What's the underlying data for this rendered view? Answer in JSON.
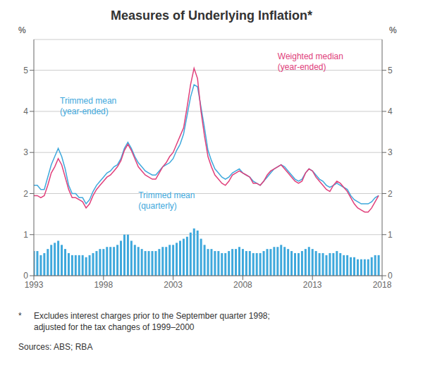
{
  "chart_data": {
    "type": "bar",
    "title": "Measures of Underlying Inflation*",
    "ylabel": "%",
    "y2label": "%",
    "footnote_mark": "*",
    "footnote": "Excludes interest charges prior to the September quarter 1998;\nadjusted for the tax changes of 1999–2000",
    "sources": "Sources: ABS; RBA",
    "grid": true,
    "xlim": [
      1993,
      2018
    ],
    "xticks": [
      1993,
      1998,
      2003,
      2008,
      2013,
      2018
    ],
    "ylim": [
      0,
      5.75
    ],
    "yticks": [
      0,
      1,
      2,
      3,
      4,
      5
    ],
    "y2lim": [
      0,
      5.75
    ],
    "y2ticks": [
      0,
      1,
      2,
      3,
      4,
      5
    ],
    "x": [
      1993,
      1993.25,
      1993.5,
      1993.75,
      1994,
      1994.25,
      1994.5,
      1994.75,
      1995,
      1995.25,
      1995.5,
      1995.75,
      1996,
      1996.25,
      1996.5,
      1996.75,
      1997,
      1997.25,
      1997.5,
      1997.75,
      1998,
      1998.25,
      1998.5,
      1998.75,
      1999,
      1999.25,
      1999.5,
      1999.75,
      2000,
      2000.25,
      2000.5,
      2000.75,
      2001,
      2001.25,
      2001.5,
      2001.75,
      2002,
      2002.25,
      2002.5,
      2002.75,
      2003,
      2003.25,
      2003.5,
      2003.75,
      2004,
      2004.25,
      2004.5,
      2004.75,
      2005,
      2005.25,
      2005.5,
      2005.75,
      2006,
      2006.25,
      2006.5,
      2006.75,
      2007,
      2007.25,
      2007.5,
      2007.75,
      2008,
      2008.25,
      2008.5,
      2008.75,
      2009,
      2009.25,
      2009.5,
      2009.75,
      2010,
      2010.25,
      2010.5,
      2010.75,
      2011,
      2011.25,
      2011.5,
      2011.75,
      2012,
      2012.25,
      2012.5,
      2012.75,
      2013,
      2013.25,
      2013.5,
      2013.75,
      2014,
      2014.25,
      2014.5,
      2014.75,
      2015,
      2015.25,
      2015.5,
      2015.75,
      2016,
      2016.25,
      2016.5,
      2016.75,
      2017,
      2017.25,
      2017.5,
      2017.75
    ],
    "series": [
      {
        "name": "Trimmed mean\n(quarterly)",
        "type": "bar",
        "color": "#3EA8DC",
        "values": [
          0.6,
          0.6,
          0.5,
          0.55,
          0.65,
          0.75,
          0.8,
          0.85,
          0.75,
          0.65,
          0.55,
          0.5,
          0.5,
          0.5,
          0.5,
          0.45,
          0.5,
          0.55,
          0.6,
          0.65,
          0.65,
          0.7,
          0.7,
          0.7,
          0.75,
          0.85,
          1.0,
          1.0,
          0.85,
          0.75,
          0.7,
          0.65,
          0.6,
          0.6,
          0.6,
          0.6,
          0.65,
          0.7,
          0.7,
          0.75,
          0.75,
          0.8,
          0.85,
          0.9,
          0.95,
          1.05,
          1.15,
          1.1,
          0.9,
          0.75,
          0.65,
          0.65,
          0.6,
          0.6,
          0.55,
          0.55,
          0.6,
          0.65,
          0.65,
          0.7,
          0.65,
          0.6,
          0.6,
          0.55,
          0.55,
          0.55,
          0.6,
          0.65,
          0.65,
          0.7,
          0.7,
          0.75,
          0.7,
          0.65,
          0.6,
          0.55,
          0.55,
          0.6,
          0.65,
          0.7,
          0.65,
          0.6,
          0.55,
          0.55,
          0.5,
          0.55,
          0.55,
          0.6,
          0.55,
          0.5,
          0.5,
          0.45,
          0.45,
          0.4,
          0.4,
          0.4,
          0.4,
          0.45,
          0.5,
          0.5
        ]
      },
      {
        "name": "Trimmed mean\n(year-ended)",
        "type": "line",
        "color": "#3EA8DC",
        "values": [
          2.2,
          2.2,
          2.1,
          2.1,
          2.4,
          2.7,
          2.9,
          3.1,
          2.9,
          2.6,
          2.2,
          2.0,
          2.0,
          1.9,
          1.9,
          1.75,
          1.85,
          2.05,
          2.2,
          2.3,
          2.4,
          2.5,
          2.55,
          2.65,
          2.7,
          2.85,
          3.1,
          3.25,
          3.1,
          2.9,
          2.75,
          2.65,
          2.55,
          2.5,
          2.45,
          2.45,
          2.55,
          2.65,
          2.7,
          2.75,
          2.85,
          3.05,
          3.2,
          3.45,
          3.9,
          4.35,
          4.65,
          4.6,
          4.1,
          3.6,
          3.05,
          2.8,
          2.6,
          2.5,
          2.4,
          2.35,
          2.4,
          2.5,
          2.55,
          2.6,
          2.5,
          2.45,
          2.4,
          2.3,
          2.25,
          2.2,
          2.3,
          2.4,
          2.5,
          2.6,
          2.65,
          2.7,
          2.65,
          2.55,
          2.45,
          2.35,
          2.3,
          2.35,
          2.5,
          2.6,
          2.55,
          2.45,
          2.35,
          2.3,
          2.2,
          2.15,
          2.2,
          2.25,
          2.2,
          2.15,
          2.1,
          1.95,
          1.85,
          1.8,
          1.75,
          1.75,
          1.75,
          1.8,
          1.9,
          1.95
        ]
      },
      {
        "name": "Weighted median\n(year-ended)",
        "type": "line",
        "color": "#E0407B",
        "values": [
          1.95,
          1.95,
          1.9,
          1.95,
          2.2,
          2.5,
          2.65,
          2.85,
          2.7,
          2.4,
          2.1,
          1.9,
          1.9,
          1.85,
          1.8,
          1.65,
          1.75,
          1.95,
          2.1,
          2.2,
          2.3,
          2.4,
          2.45,
          2.55,
          2.65,
          2.8,
          3.05,
          3.2,
          3.05,
          2.85,
          2.65,
          2.55,
          2.45,
          2.4,
          2.35,
          2.35,
          2.5,
          2.65,
          2.75,
          2.9,
          3.0,
          3.2,
          3.4,
          3.6,
          4.1,
          4.65,
          5.05,
          4.8,
          4.0,
          3.4,
          2.9,
          2.65,
          2.45,
          2.35,
          2.25,
          2.2,
          2.3,
          2.45,
          2.5,
          2.55,
          2.5,
          2.45,
          2.4,
          2.25,
          2.25,
          2.2,
          2.3,
          2.45,
          2.55,
          2.6,
          2.65,
          2.7,
          2.6,
          2.5,
          2.4,
          2.3,
          2.25,
          2.3,
          2.5,
          2.6,
          2.55,
          2.4,
          2.3,
          2.2,
          2.1,
          2.05,
          2.2,
          2.3,
          2.25,
          2.15,
          2.05,
          1.9,
          1.75,
          1.65,
          1.6,
          1.55,
          1.55,
          1.65,
          1.8,
          1.95
        ]
      }
    ]
  }
}
